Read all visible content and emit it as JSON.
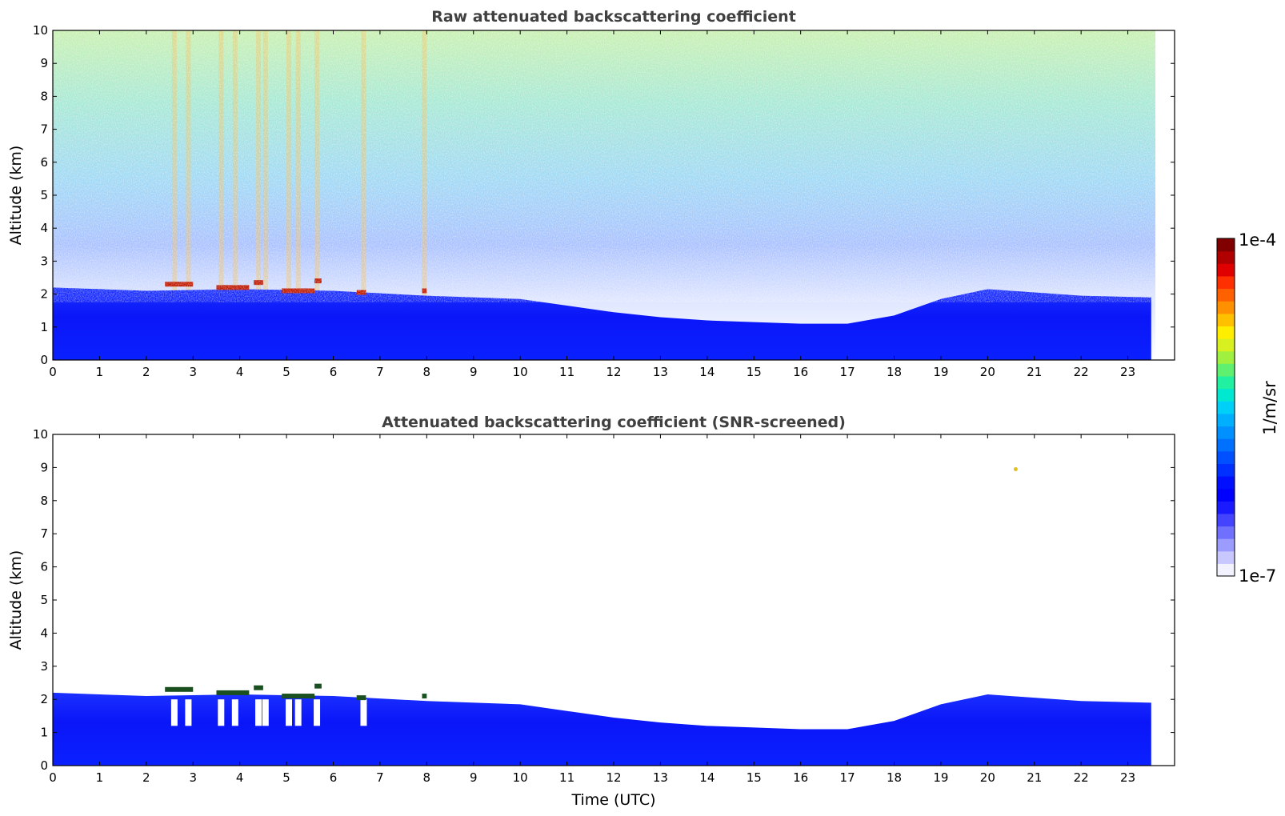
{
  "chart_data": [
    {
      "type": "heatmap",
      "title": "Raw attenuated backscattering coefficient",
      "xlabel": "",
      "ylabel": "Altitude (km)",
      "xlim": [
        0,
        24
      ],
      "ylim": [
        0,
        10
      ],
      "x_ticks": [
        "0",
        "1",
        "2",
        "3",
        "4",
        "5",
        "6",
        "7",
        "8",
        "9",
        "10",
        "11",
        "12",
        "13",
        "14",
        "15",
        "16",
        "17",
        "18",
        "19",
        "20",
        "21",
        "22",
        "23"
      ],
      "y_ticks": [
        "0",
        "1",
        "2",
        "3",
        "4",
        "5",
        "6",
        "7",
        "8",
        "9",
        "10"
      ],
      "data_end_time": 23.5,
      "boundary_layer_top_km": [
        {
          "t": 0,
          "km": 2.2
        },
        {
          "t": 2,
          "km": 2.1
        },
        {
          "t": 4,
          "km": 2.15
        },
        {
          "t": 6,
          "km": 2.1
        },
        {
          "t": 8,
          "km": 1.95
        },
        {
          "t": 10,
          "km": 1.85
        },
        {
          "t": 11,
          "km": 1.65
        },
        {
          "t": 12,
          "km": 1.45
        },
        {
          "t": 13,
          "km": 1.3
        },
        {
          "t": 14,
          "km": 1.2
        },
        {
          "t": 15,
          "km": 1.15
        },
        {
          "t": 16,
          "km": 1.1
        },
        {
          "t": 17,
          "km": 1.1
        },
        {
          "t": 18,
          "km": 1.35
        },
        {
          "t": 19,
          "km": 1.85
        },
        {
          "t": 20,
          "km": 2.15
        },
        {
          "t": 21,
          "km": 2.05
        },
        {
          "t": 22,
          "km": 1.95
        },
        {
          "t": 23.5,
          "km": 1.9
        }
      ],
      "cloud_layers": [
        {
          "t_start": 2.4,
          "t_end": 3.0,
          "km": 2.3
        },
        {
          "t_start": 3.5,
          "t_end": 4.2,
          "km": 2.2
        },
        {
          "t_start": 4.3,
          "t_end": 4.5,
          "km": 2.35
        },
        {
          "t_start": 4.9,
          "t_end": 5.6,
          "km": 2.1
        },
        {
          "t_start": 5.6,
          "t_end": 5.75,
          "km": 2.4
        },
        {
          "t_start": 6.5,
          "t_end": 6.7,
          "km": 2.05
        },
        {
          "t_start": 7.9,
          "t_end": 8.0,
          "km": 2.1
        }
      ],
      "rain_streaks_t": [
        2.6,
        2.9,
        3.6,
        3.9,
        4.4,
        4.55,
        5.05,
        5.25,
        5.65,
        6.65,
        7.95
      ],
      "signal_gradient": "white near surface above boundary layer, blue up to ~4 km, cyan/green above 6 km, yellow/orange noise streaks near top"
    },
    {
      "type": "heatmap",
      "title": "Attenuated backscattering coefficient (SNR-screened)",
      "xlabel": "Time (UTC)",
      "ylabel": "Altitude (km)",
      "xlim": [
        0,
        24
      ],
      "ylim": [
        0,
        10
      ],
      "x_ticks": [
        "0",
        "1",
        "2",
        "3",
        "4",
        "5",
        "6",
        "7",
        "8",
        "9",
        "10",
        "11",
        "12",
        "13",
        "14",
        "15",
        "16",
        "17",
        "18",
        "19",
        "20",
        "21",
        "22",
        "23"
      ],
      "y_ticks": [
        "0",
        "1",
        "2",
        "3",
        "4",
        "5",
        "6",
        "7",
        "8",
        "9",
        "10"
      ],
      "data_end_time": 23.5,
      "isolated_points": [
        {
          "t": 20.6,
          "km": 8.95
        }
      ]
    }
  ],
  "colorbar": {
    "label": "1/m/sr",
    "max_label": "1e-4",
    "min_label": "1e-7",
    "colors": [
      "#f2f2ff",
      "#c8c8ff",
      "#9c9cff",
      "#7070ff",
      "#4444ff",
      "#1a1aff",
      "#0000ff",
      "#0010ff",
      "#0030ff",
      "#0050ff",
      "#0070ff",
      "#0090ff",
      "#00b0ff",
      "#00d0f8",
      "#00e8d0",
      "#20f0a0",
      "#60f070",
      "#a0f040",
      "#d8f020",
      "#ffee00",
      "#ffc000",
      "#ff9000",
      "#ff6000",
      "#ff3000",
      "#e00000",
      "#b00000",
      "#800000"
    ]
  }
}
